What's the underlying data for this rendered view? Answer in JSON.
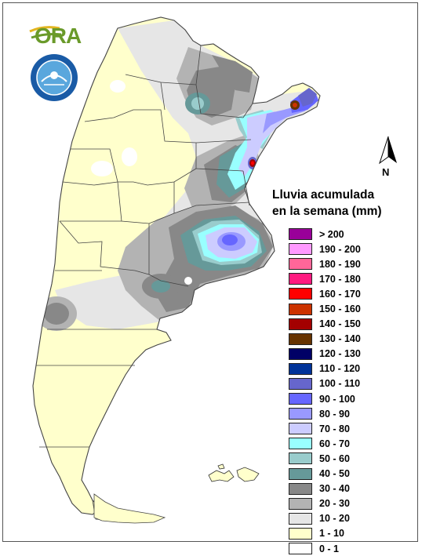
{
  "legend": {
    "title_line1": "Lluvia acumulada",
    "title_line2": "en la semana (mm)",
    "items": [
      {
        "label": "> 200",
        "color": "#990099"
      },
      {
        "label": "190 - 200",
        "color": "#ff99ff"
      },
      {
        "label": "180 - 190",
        "color": "#ff6699"
      },
      {
        "label": "170 - 180",
        "color": "#ff1a80"
      },
      {
        "label": "160 - 170",
        "color": "#ff0000"
      },
      {
        "label": "150 - 160",
        "color": "#cc3300"
      },
      {
        "label": "140 - 150",
        "color": "#a30000"
      },
      {
        "label": "130 - 140",
        "color": "#663300"
      },
      {
        "label": "120 - 130",
        "color": "#000066"
      },
      {
        "label": "110 - 120",
        "color": "#003399"
      },
      {
        "label": "100 - 110",
        "color": "#6666cc"
      },
      {
        "label": "90 - 100",
        "color": "#6666ff"
      },
      {
        "label": "80 - 90",
        "color": "#9999ff"
      },
      {
        "label": "70 - 80",
        "color": "#ccccff"
      },
      {
        "label": "60 - 70",
        "color": "#99ffff"
      },
      {
        "label": "50 - 60",
        "color": "#99cccc"
      },
      {
        "label": "40 - 50",
        "color": "#669999"
      },
      {
        "label": "30 - 40",
        "color": "#888888"
      },
      {
        "label": "20 - 30",
        "color": "#b3b3b3"
      },
      {
        "label": "10 - 20",
        "color": "#e6e6e6"
      },
      {
        "label": "1 - 10",
        "color": "#ffffcc"
      },
      {
        "label": "0 - 1",
        "color": "#ffffff"
      }
    ]
  },
  "logos": {
    "ora_text": "ORA",
    "ora_icon": "ora-logo-icon",
    "smn_icon": "smn-seal-icon"
  },
  "north_arrow": {
    "label": "N",
    "icon": "north-arrow-icon"
  },
  "colors": {
    "land_dry": "#ffffcc",
    "border": "#444444",
    "frame": "#555555"
  }
}
